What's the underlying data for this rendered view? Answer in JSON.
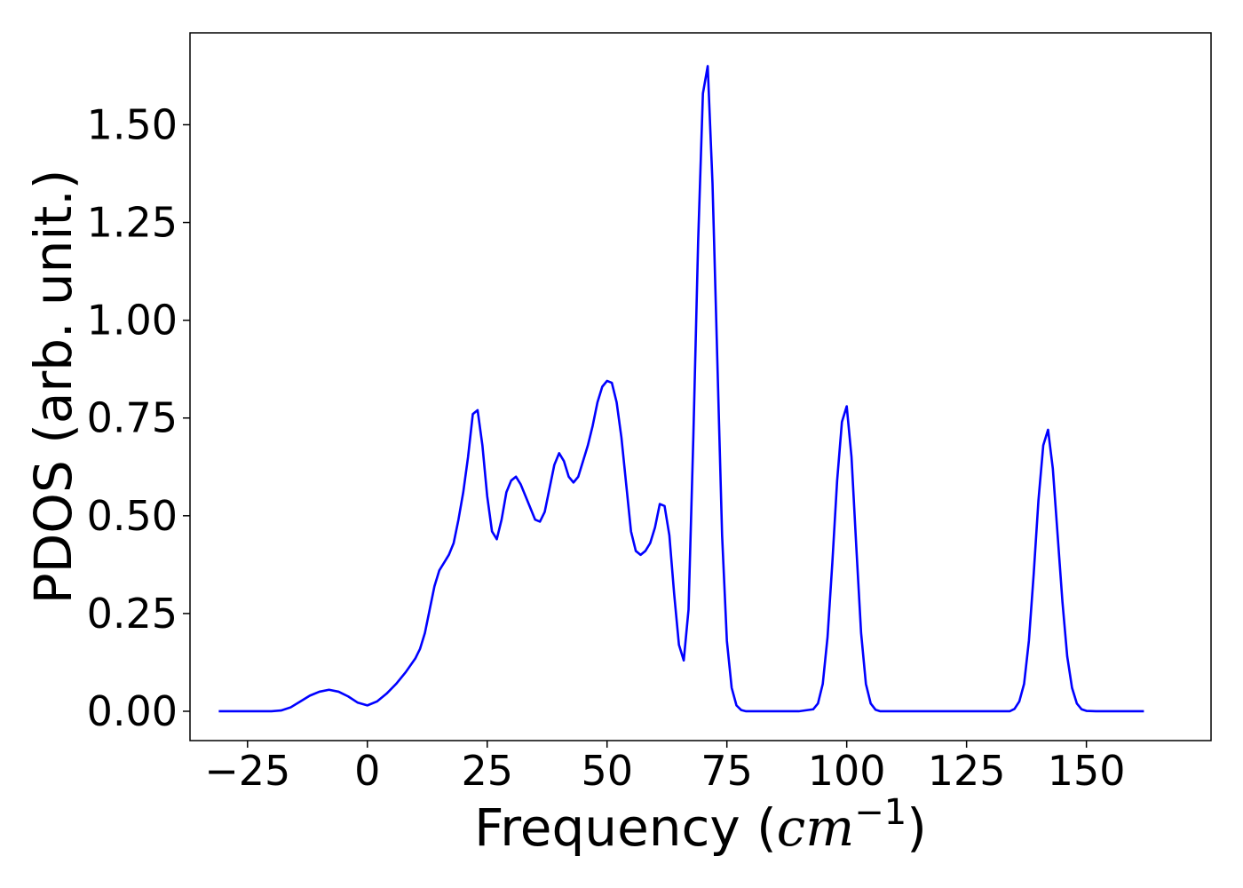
{
  "chart_data": {
    "type": "line",
    "title": "",
    "xlabel_text": "Frequency (",
    "xlabel_math": "cm",
    "xlabel_exp": "−1",
    "xlabel_close": ")",
    "ylabel": "PDOS (arb. unit.)",
    "xlim": [
      -37,
      176
    ],
    "ylim": [
      -0.075,
      1.735
    ],
    "xticks": [
      -25,
      0,
      25,
      50,
      75,
      100,
      125,
      150
    ],
    "xtick_labels": [
      "−25",
      "0",
      "25",
      "50",
      "75",
      "100",
      "125",
      "150"
    ],
    "yticks": [
      0.0,
      0.25,
      0.5,
      0.75,
      1.0,
      1.25,
      1.5
    ],
    "ytick_labels": [
      "0.00",
      "0.25",
      "0.50",
      "0.75",
      "1.00",
      "1.25",
      "1.50"
    ],
    "grid": false,
    "series": [
      {
        "color": "#0000ff",
        "x": [
          -31,
          -25,
          -20,
          -18,
          -16,
          -14,
          -12,
          -10,
          -8,
          -6,
          -4,
          -2,
          0,
          2,
          4,
          6,
          8,
          10,
          11,
          12,
          13,
          14,
          15,
          16,
          17,
          18,
          19,
          20,
          21,
          22,
          23,
          24,
          25,
          26,
          27,
          28,
          29,
          30,
          31,
          32,
          33,
          34,
          35,
          36,
          37,
          38,
          39,
          40,
          41,
          42,
          43,
          44,
          45,
          46,
          47,
          48,
          49,
          50,
          51,
          52,
          53,
          54,
          55,
          56,
          57,
          58,
          59,
          60,
          61,
          62,
          63,
          64,
          65,
          66,
          67,
          68,
          69,
          70,
          71,
          72,
          73,
          74,
          75,
          76,
          77,
          78,
          79,
          80,
          82,
          85,
          90,
          93,
          94,
          95,
          96,
          97,
          98,
          99,
          100,
          101,
          102,
          103,
          104,
          105,
          106,
          107,
          108,
          110,
          115,
          120,
          125,
          130,
          134,
          135,
          136,
          137,
          138,
          139,
          140,
          141,
          142,
          143,
          144,
          145,
          146,
          147,
          148,
          149,
          150,
          152,
          155,
          160,
          162
        ],
        "y": [
          0.0,
          0.0,
          0.0,
          0.002,
          0.01,
          0.025,
          0.04,
          0.05,
          0.055,
          0.05,
          0.038,
          0.022,
          0.015,
          0.025,
          0.045,
          0.07,
          0.1,
          0.135,
          0.16,
          0.2,
          0.26,
          0.32,
          0.36,
          0.38,
          0.4,
          0.43,
          0.49,
          0.56,
          0.65,
          0.76,
          0.77,
          0.68,
          0.55,
          0.46,
          0.44,
          0.49,
          0.56,
          0.59,
          0.6,
          0.58,
          0.55,
          0.52,
          0.49,
          0.485,
          0.51,
          0.57,
          0.63,
          0.66,
          0.64,
          0.6,
          0.585,
          0.6,
          0.64,
          0.68,
          0.73,
          0.79,
          0.83,
          0.845,
          0.84,
          0.79,
          0.7,
          0.58,
          0.46,
          0.41,
          0.4,
          0.41,
          0.43,
          0.47,
          0.53,
          0.525,
          0.45,
          0.3,
          0.17,
          0.13,
          0.26,
          0.7,
          1.2,
          1.58,
          1.65,
          1.35,
          0.9,
          0.45,
          0.18,
          0.06,
          0.015,
          0.003,
          0.0,
          0.0,
          0.0,
          0.0,
          0.0,
          0.005,
          0.02,
          0.07,
          0.19,
          0.38,
          0.59,
          0.74,
          0.78,
          0.65,
          0.42,
          0.2,
          0.07,
          0.02,
          0.004,
          0.0,
          0.0,
          0.0,
          0.0,
          0.0,
          0.0,
          0.0,
          0.0,
          0.006,
          0.025,
          0.07,
          0.18,
          0.35,
          0.54,
          0.68,
          0.72,
          0.62,
          0.45,
          0.28,
          0.14,
          0.06,
          0.02,
          0.005,
          0.001,
          0.0,
          0.0,
          0.0,
          0.0
        ]
      }
    ]
  }
}
